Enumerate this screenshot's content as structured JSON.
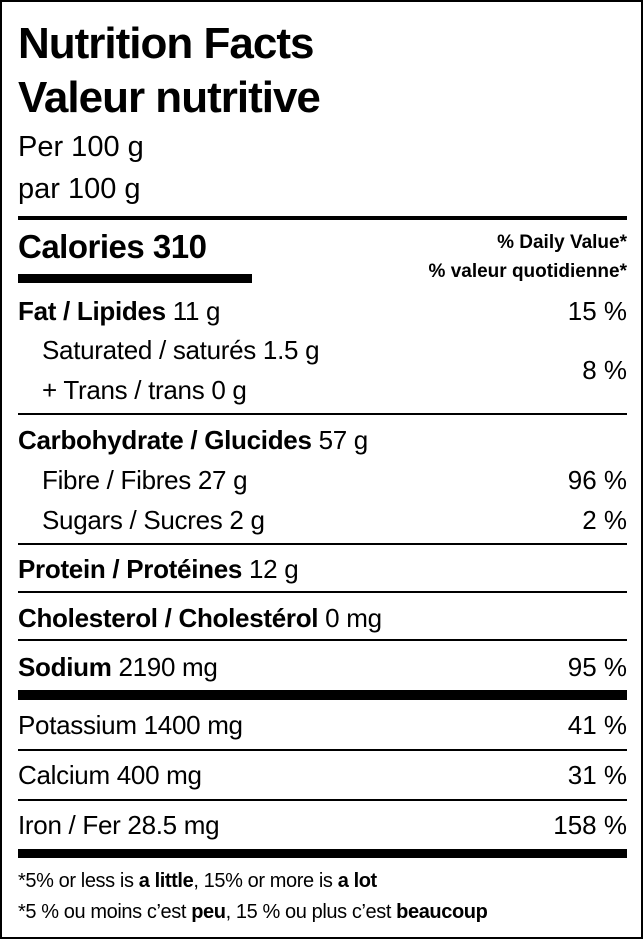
{
  "header": {
    "title_en": "Nutrition Facts",
    "title_fr": "Valeur nutritive",
    "serving_en": "Per 100 g",
    "serving_fr": "par 100 g"
  },
  "calories": {
    "label": "Calories",
    "value": "310"
  },
  "daily_value_header": {
    "en": "% Daily Value*",
    "fr": "% valeur quotidienne*"
  },
  "nutrients": {
    "fat": {
      "label": "Fat / Lipides",
      "amount": "11 g",
      "dv": "15 %"
    },
    "saturated": {
      "label": "Saturated / saturés",
      "amount": "1.5 g"
    },
    "trans": {
      "label": "+ Trans / trans",
      "amount": "0 g",
      "dv": "8 %"
    },
    "carbohydrate": {
      "label": "Carbohydrate / Glucides",
      "amount": "57 g"
    },
    "fibre": {
      "label": "Fibre / Fibres",
      "amount": "27 g",
      "dv": "96 %"
    },
    "sugars": {
      "label": "Sugars / Sucres",
      "amount": "2 g",
      "dv": "2 %"
    },
    "protein": {
      "label": "Protein / Protéines",
      "amount": "12 g"
    },
    "cholesterol": {
      "label": "Cholesterol / Cholestérol",
      "amount": "0 mg"
    },
    "sodium": {
      "label": "Sodium",
      "amount": "2190 mg",
      "dv": "95 %"
    },
    "potassium": {
      "label": "Potassium",
      "amount": "1400 mg",
      "dv": "41 %"
    },
    "calcium": {
      "label": "Calcium",
      "amount": "400 mg",
      "dv": "31 %"
    },
    "iron": {
      "label": "Iron / Fer",
      "amount": "28.5 mg",
      "dv": "158 %"
    }
  },
  "footnote": {
    "en": {
      "p1": "*5% or less is ",
      "b1": "a little",
      "p2": ", 15% or more is ",
      "b2": "a lot"
    },
    "fr": {
      "p1": "*5 % ou moins c’est ",
      "b1": "peu",
      "p2": ", 15 % ou plus c’est ",
      "b2": "beaucoup"
    }
  }
}
